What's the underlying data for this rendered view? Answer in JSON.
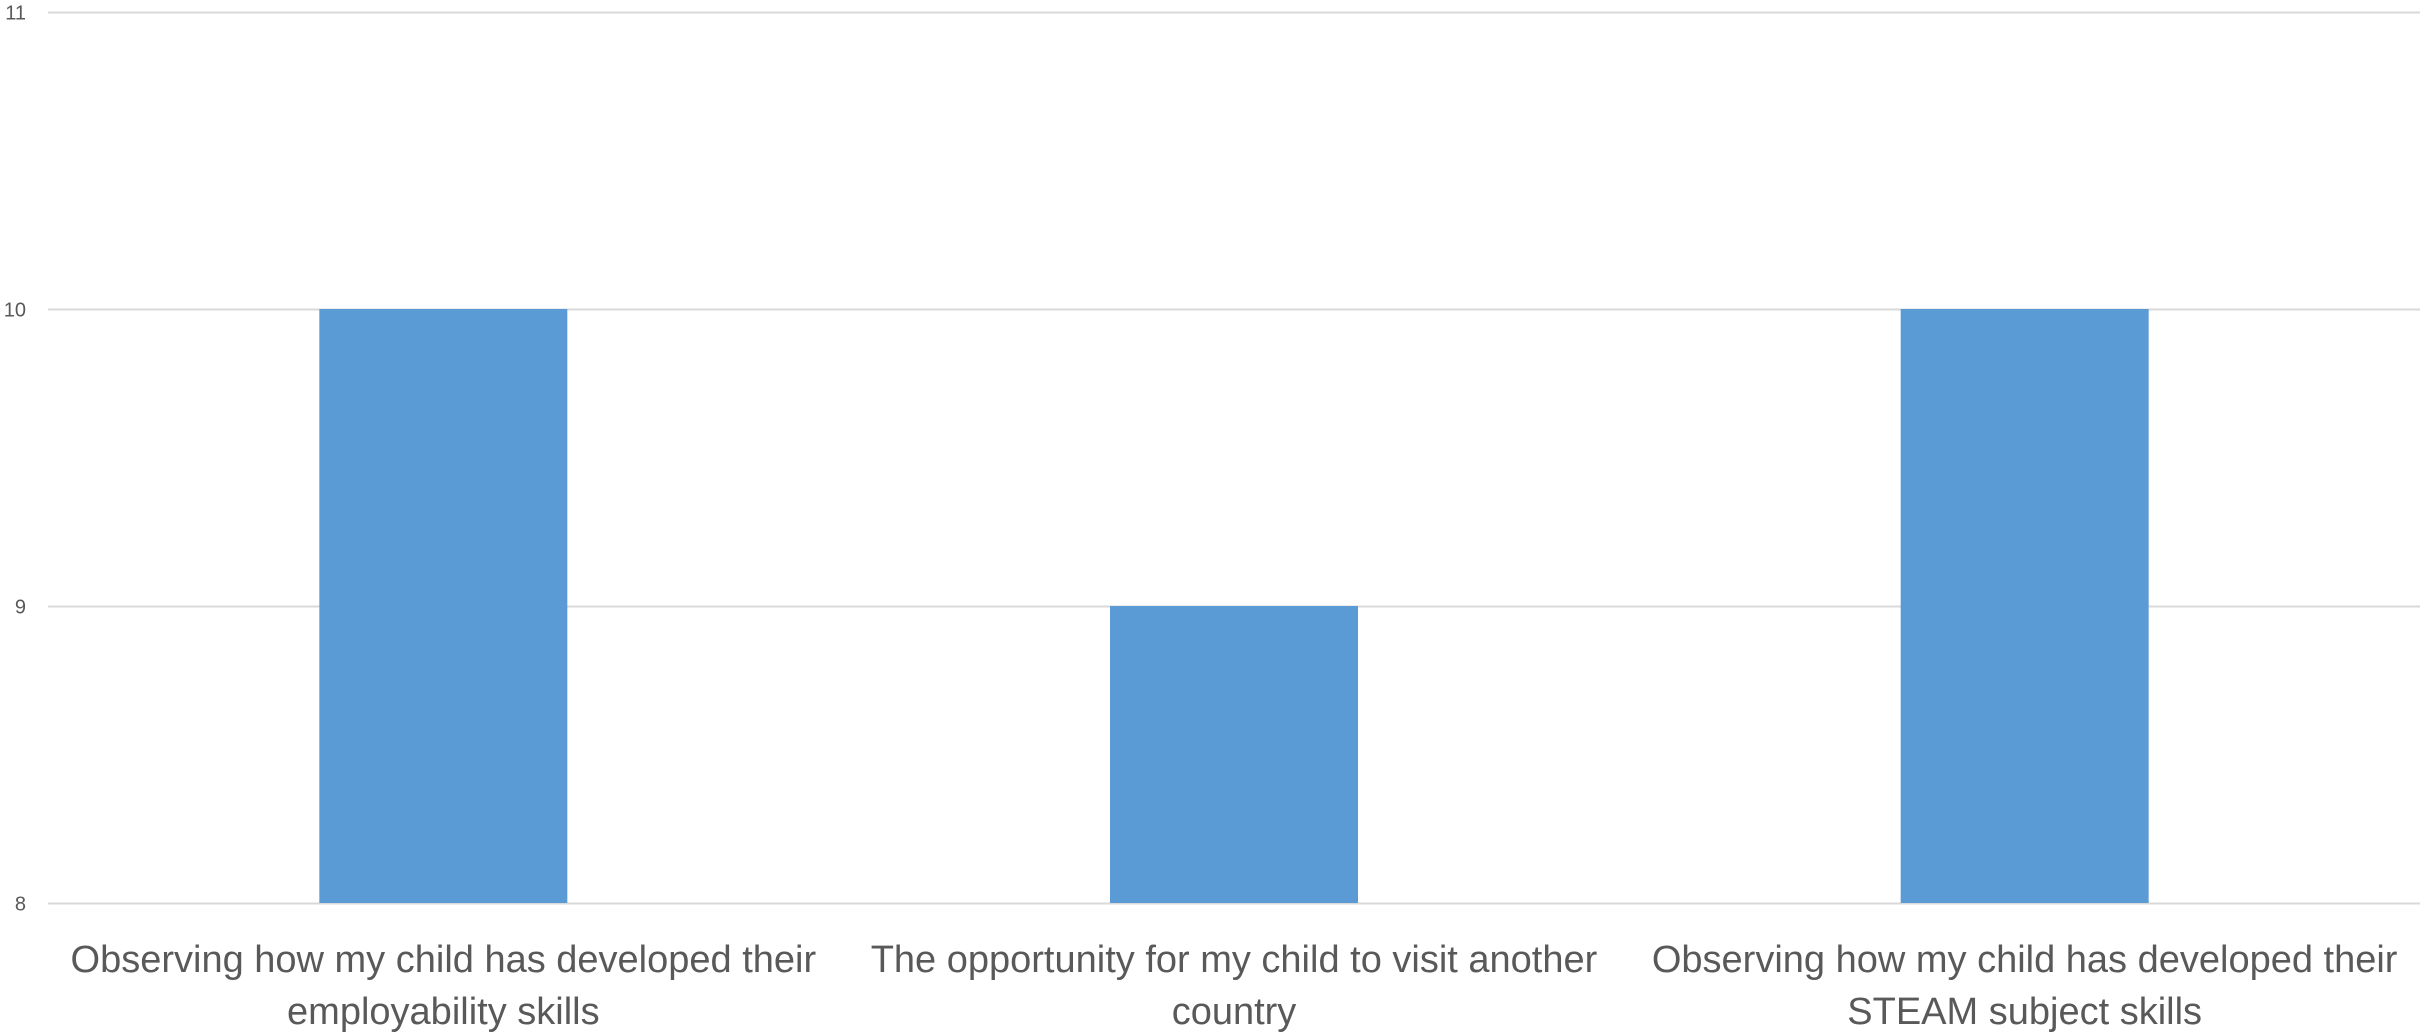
{
  "chart_data": {
    "type": "bar",
    "title": "",
    "xlabel": "",
    "ylabel": "",
    "categories": [
      [
        "Observing how my child has developed their",
        "employability skills"
      ],
      [
        "The opportunity for my child to visit another",
        "country"
      ],
      [
        "Observing how my child has developed their",
        "STEAM subject skills"
      ]
    ],
    "values": [
      10,
      9,
      10
    ],
    "ylim": [
      8,
      11
    ],
    "yticks": [
      "8",
      "9",
      "10",
      "11"
    ],
    "grid": true,
    "legend": "none",
    "colors": {
      "bar": "#5B9BD5",
      "grid": "#D9D9D9",
      "text": "#595959"
    }
  }
}
